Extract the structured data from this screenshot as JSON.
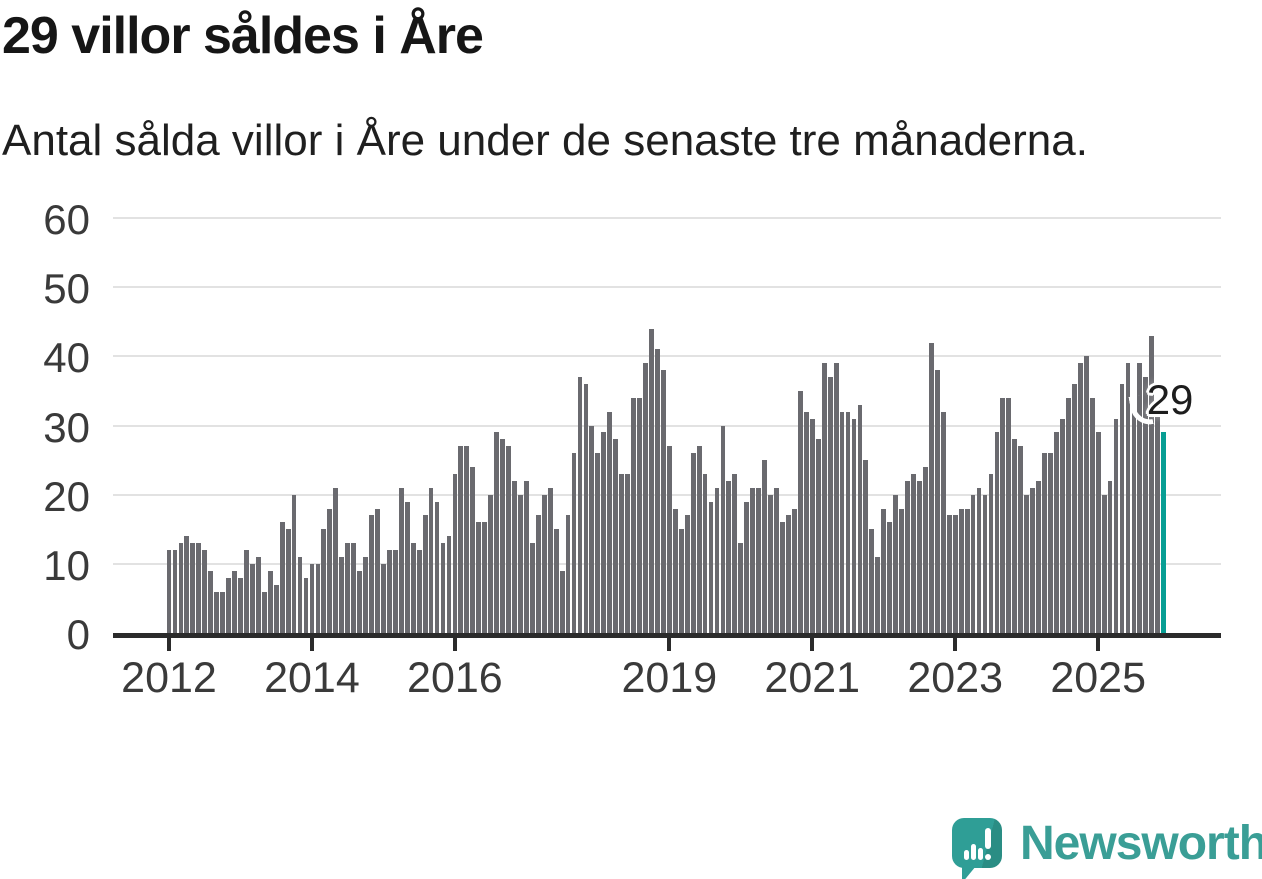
{
  "header": {
    "title": "29 villor såldes i Åre",
    "subtitle": "Antal sålda villor i Åre under de senaste tre månaderna."
  },
  "annotation": {
    "label": "29"
  },
  "colors": {
    "bar": "#6a6a6f",
    "highlight": "#089e94",
    "logo_teal": "#3a9e96",
    "axis": "#2b2b2b",
    "grid": "#e2e2e2",
    "title_text": "#161616",
    "axis_label": "#3a3a3a"
  },
  "logo": {
    "wordmark": "Newsworthy"
  },
  "chart_data": {
    "type": "bar",
    "title": "29 villor såldes i Åre",
    "subtitle": "Antal sålda villor i Åre under de senaste tre månaderna.",
    "unit": "sålda villor, rullande tremånadersperiod",
    "start_month": "2012-01",
    "end_month": "2025-12",
    "ylim": [
      0,
      60
    ],
    "yticks": [
      0,
      10,
      20,
      30,
      40,
      50,
      60
    ],
    "grid": true,
    "legend": "none",
    "highlight_last_bar": true,
    "highlight_value": 29,
    "xticks": [
      {
        "label": "2012",
        "month_index": 0
      },
      {
        "label": "2014",
        "month_index": 24
      },
      {
        "label": "2016",
        "month_index": 48
      },
      {
        "label": "2019",
        "month_index": 84
      },
      {
        "label": "2021",
        "month_index": 108
      },
      {
        "label": "2023",
        "month_index": 132
      },
      {
        "label": "2025",
        "month_index": 156
      }
    ],
    "values_by_year": {
      "2012": [
        12,
        12,
        13,
        14,
        13,
        13,
        12,
        9,
        6,
        6,
        8,
        9
      ],
      "2013": [
        8,
        12,
        10,
        11,
        6,
        9,
        7,
        16,
        15,
        20,
        11,
        8
      ],
      "2014": [
        10,
        10,
        15,
        18,
        21,
        11,
        13,
        13,
        9,
        11,
        17,
        18
      ],
      "2015": [
        10,
        12,
        12,
        21,
        19,
        13,
        12,
        17,
        21,
        19,
        13,
        14
      ],
      "2016": [
        23,
        27,
        27,
        24,
        16,
        16,
        20,
        29,
        28,
        27,
        22,
        20
      ],
      "2017": [
        22,
        13,
        17,
        20,
        21,
        15,
        9,
        17,
        26,
        37,
        36,
        30
      ],
      "2018": [
        26,
        29,
        32,
        28,
        23,
        23,
        34,
        34,
        39,
        44,
        41,
        38
      ],
      "2019": [
        27,
        18,
        15,
        17,
        26,
        27,
        23,
        19,
        21,
        30,
        22,
        23
      ],
      "2020": [
        13,
        19,
        21,
        21,
        25,
        20,
        21,
        16,
        17,
        18,
        35,
        32
      ],
      "2021": [
        31,
        28,
        39,
        37,
        39,
        32,
        32,
        31,
        33,
        25,
        15,
        11
      ],
      "2022": [
        18,
        16,
        20,
        18,
        22,
        23,
        22,
        24,
        42,
        38,
        32,
        17
      ],
      "2023": [
        17,
        18,
        18,
        20,
        21,
        20,
        23,
        29,
        34,
        34,
        28,
        27
      ],
      "2024": [
        20,
        21,
        22,
        26,
        26,
        29,
        31,
        34,
        36,
        39,
        40,
        34
      ],
      "2025": [
        29,
        20,
        22,
        31,
        36,
        39,
        32,
        39,
        37,
        43,
        33,
        29
      ]
    }
  }
}
